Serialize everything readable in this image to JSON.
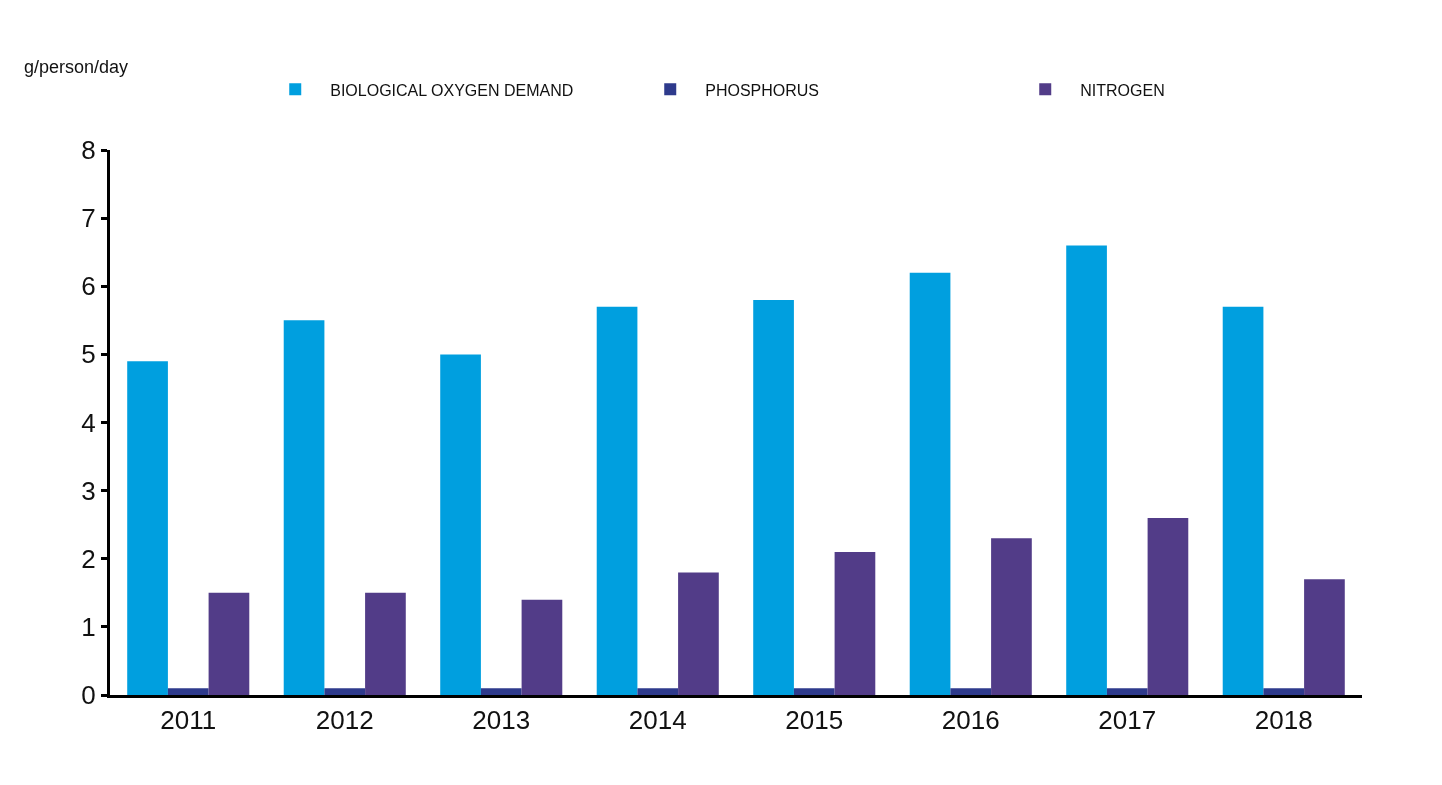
{
  "chart_data": {
    "type": "bar",
    "ylabel": "g/person/day",
    "categories": [
      "2011",
      "2012",
      "2013",
      "2014",
      "2015",
      "2016",
      "2017",
      "2018"
    ],
    "series": [
      {
        "name": "BIOLOGICAL OXYGEN DEMAND",
        "color": "#009fdf",
        "values": [
          4.9,
          5.5,
          5.0,
          5.7,
          5.8,
          6.2,
          6.6,
          5.7
        ]
      },
      {
        "name": "PHOSPHORUS",
        "color": "#2e3a8c",
        "values": [
          0.1,
          0.1,
          0.1,
          0.1,
          0.1,
          0.1,
          0.1,
          0.1
        ]
      },
      {
        "name": "NITROGEN",
        "color": "#523c88",
        "values": [
          1.5,
          1.5,
          1.4,
          1.8,
          2.1,
          2.3,
          2.6,
          1.7
        ]
      }
    ],
    "ylim": [
      0,
      8
    ],
    "yticks": [
      0,
      1,
      2,
      3,
      4,
      5,
      6,
      7,
      8
    ],
    "grid": false,
    "legend": "top"
  }
}
